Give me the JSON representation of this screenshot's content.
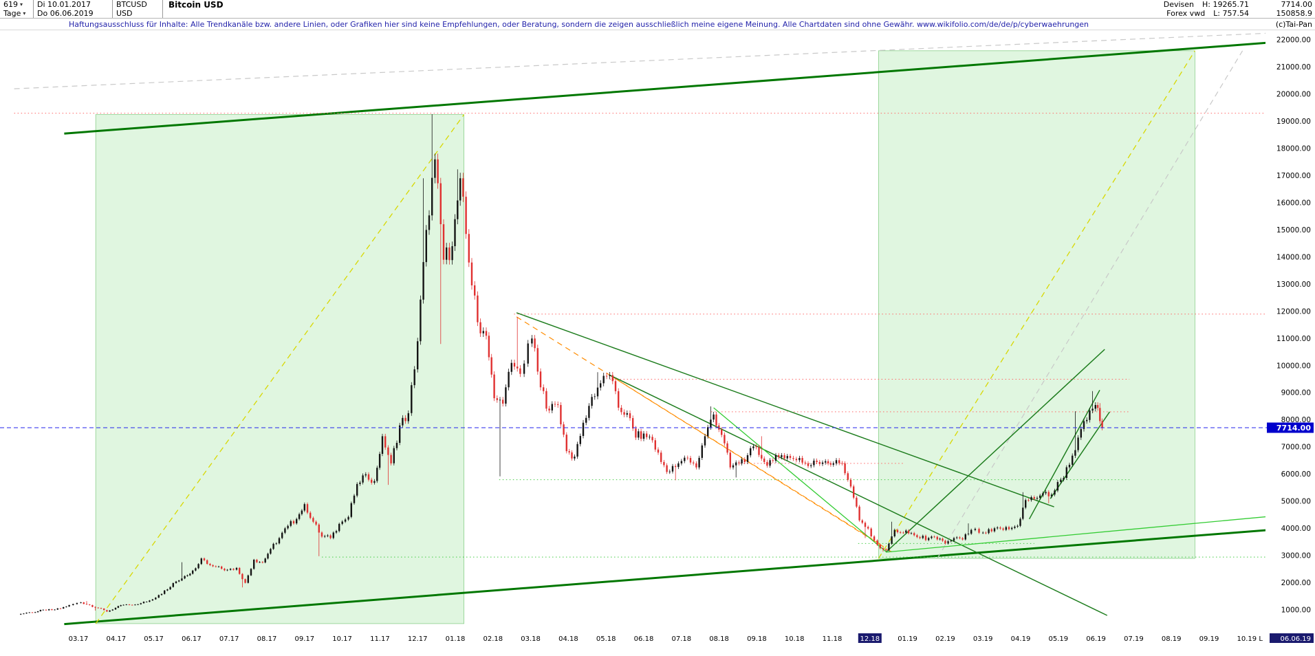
{
  "header": {
    "period_selector": "619",
    "caret": "▾",
    "date_start": "Di 10.01.2017",
    "symbol": "BTCUSD",
    "title": "Bitcoin USD",
    "timeframe_selector": "Tage",
    "date_end": "Do 06.06.2019",
    "currency": "USD",
    "market": "Devisen",
    "high": "H: 19265.71",
    "last": "7714.00",
    "source": "Forex vwd",
    "low": "L: 757.54",
    "volume": "150858.9",
    "copyright": "(c)Tai-Pan"
  },
  "disclaimer": "Haftungsausschluss für Inhalte: Alle Trendkanäle bzw. andere Linien, oder Grafiken hier sind keine Empfehlungen, oder Beratung, sondern die zeigen ausschließlich meine eigene Meinung. Alle Chartdaten sind ohne Gewähr.  www.wikifolio.com/de/de/p/cyberwaehrungen",
  "axes": {
    "price_labels": [
      "22000.00",
      "21000.00",
      "20000.00",
      "19000.00",
      "18000.00",
      "17000.00",
      "16000.00",
      "15000.00",
      "14000.00",
      "13000.00",
      "12000.00",
      "11000.00",
      "10000.00",
      "9000.00",
      "8000.00",
      "7000.00",
      "6000.00",
      "5000.00",
      "4000.00",
      "3000.00",
      "2000.00",
      "1000.00"
    ],
    "price_tag": "7714.00",
    "month_labels": [
      "03.17",
      "04.17",
      "05.17",
      "06.17",
      "07.17",
      "08.17",
      "09.17",
      "10.17",
      "11.17",
      "12.17",
      "01.18",
      "02.18",
      "03.18",
      "04.18",
      "05.18",
      "06.18",
      "07.18",
      "08.18",
      "09.18",
      "10.18",
      "11.18",
      "12.18",
      "01.19",
      "02.19",
      "03.19",
      "04.19",
      "05.19",
      "06.19",
      "07.19",
      "08.19",
      "09.19",
      "10.19"
    ],
    "highlighted_month": "12.18",
    "last_marker": "L",
    "last_date": "06.06.19"
  },
  "colors": {
    "up_candle": "#141414",
    "down_candle": "#e03030",
    "trend_channel": "#007700",
    "trend_line": "#1e7d1e",
    "bright_green": "#33cc33",
    "region_fill": "#8ee08e",
    "region_border": "#7ac87a",
    "yellow_dash": "#d8d800",
    "gray_dash": "#c8c8c8",
    "red_dotted": "#ff6666",
    "green_dotted": "#44cc44",
    "orange_dash": "#ff8c00",
    "blue_line": "#2222ee",
    "price_tag_bg": "#0000cc",
    "highlight_label_bg": "#1a1a6e"
  },
  "chart_data": {
    "type": "candlestick",
    "title": "Bitcoin USD",
    "symbol": "BTCUSD",
    "timeframe": "Tage (daily)",
    "bars": 619,
    "date_range": [
      "2017-01-10",
      "2019-06-06"
    ],
    "high": 19265.71,
    "low": 757.54,
    "last": 7714.0,
    "ylim": [
      500,
      22500
    ],
    "price_tick_step": 1000,
    "weekly": [
      [
        "2017-01-13",
        830,
        null,
        757
      ],
      [
        "2017-01-20",
        900
      ],
      [
        "2017-01-27",
        920
      ],
      [
        "2017-02-03",
        1010
      ],
      [
        "2017-02-10",
        1000
      ],
      [
        "2017-02-17",
        1055
      ],
      [
        "2017-02-24",
        1180
      ],
      [
        "2017-03-03",
        1280
      ],
      [
        "2017-03-10",
        1180,
        1330
      ],
      [
        "2017-03-17",
        1070,
        null,
        980
      ],
      [
        "2017-03-24",
        940
      ],
      [
        "2017-03-31",
        1080
      ],
      [
        "2017-04-07",
        1190
      ],
      [
        "2017-04-14",
        1180
      ],
      [
        "2017-04-21",
        1250
      ],
      [
        "2017-04-28",
        1350
      ],
      [
        "2017-05-05",
        1550
      ],
      [
        "2017-05-12",
        1760
      ],
      [
        "2017-05-19",
        2050
      ],
      [
        "2017-05-26",
        2250,
        2760
      ],
      [
        "2017-06-02",
        2450
      ],
      [
        "2017-06-09",
        2900
      ],
      [
        "2017-06-16",
        2650
      ],
      [
        "2017-06-23",
        2600
      ],
      [
        "2017-06-30",
        2480
      ],
      [
        "2017-07-07",
        2550
      ],
      [
        "2017-07-14",
        2000,
        null,
        1830
      ],
      [
        "2017-07-21",
        2850
      ],
      [
        "2017-07-28",
        2750
      ],
      [
        "2017-08-04",
        3250
      ],
      [
        "2017-08-11",
        3650
      ],
      [
        "2017-08-18",
        4100
      ],
      [
        "2017-08-25",
        4350
      ],
      [
        "2017-09-01",
        4900
      ],
      [
        "2017-09-08",
        4250
      ],
      [
        "2017-09-15",
        3700,
        null,
        2980
      ],
      [
        "2017-09-22",
        3650
      ],
      [
        "2017-09-29",
        4170
      ],
      [
        "2017-10-06",
        4430
      ],
      [
        "2017-10-13",
        5640
      ],
      [
        "2017-10-20",
        6000
      ],
      [
        "2017-10-27",
        5750
      ],
      [
        "2017-11-03",
        7400
      ],
      [
        "2017-11-10",
        6400,
        null,
        5610
      ],
      [
        "2017-11-17",
        7800
      ],
      [
        "2017-11-24",
        8250
      ],
      [
        "2017-12-01",
        10900
      ],
      [
        "2017-12-08",
        15000,
        16900
      ],
      [
        "2017-12-15",
        17600,
        19265
      ],
      [
        "2017-12-22",
        13900,
        null,
        10800
      ],
      [
        "2017-12-29",
        14400
      ],
      [
        "2018-01-05",
        16900,
        17230
      ],
      [
        "2018-01-12",
        13800
      ],
      [
        "2018-01-19",
        11600
      ],
      [
        "2018-01-26",
        11100
      ],
      [
        "2018-02-02",
        8800
      ],
      [
        "2018-02-09",
        8600,
        null,
        5920
      ],
      [
        "2018-02-16",
        10100
      ],
      [
        "2018-02-23",
        9700,
        11790
      ],
      [
        "2018-03-02",
        11000
      ],
      [
        "2018-03-09",
        9200
      ],
      [
        "2018-03-16",
        8350
      ],
      [
        "2018-03-23",
        8550
      ],
      [
        "2018-03-30",
        6850
      ],
      [
        "2018-04-06",
        6650
      ],
      [
        "2018-04-13",
        7900
      ],
      [
        "2018-04-20",
        8850
      ],
      [
        "2018-04-27",
        9350,
        9760
      ],
      [
        "2018-05-04",
        9650
      ],
      [
        "2018-05-11",
        8450
      ],
      [
        "2018-05-18",
        8250
      ],
      [
        "2018-05-25",
        7350
      ],
      [
        "2018-06-01",
        7500
      ],
      [
        "2018-06-08",
        7250
      ],
      [
        "2018-06-15",
        6450
      ],
      [
        "2018-06-22",
        6100
      ],
      [
        "2018-06-29",
        6400,
        null,
        5780
      ],
      [
        "2018-07-06",
        6600
      ],
      [
        "2018-07-13",
        6250
      ],
      [
        "2018-07-20",
        7400
      ],
      [
        "2018-07-27",
        8200,
        8500
      ],
      [
        "2018-08-03",
        7450
      ],
      [
        "2018-08-10",
        6250
      ],
      [
        "2018-08-17",
        6400,
        null,
        5880
      ],
      [
        "2018-08-24",
        6700
      ],
      [
        "2018-08-31",
        7000
      ],
      [
        "2018-09-07",
        6450,
        7400
      ],
      [
        "2018-09-14",
        6500
      ],
      [
        "2018-09-21",
        6700
      ],
      [
        "2018-09-28",
        6600
      ],
      [
        "2018-10-05",
        6600
      ],
      [
        "2018-10-12",
        6300
      ],
      [
        "2018-10-19",
        6450
      ],
      [
        "2018-10-26",
        6480
      ],
      [
        "2018-11-02",
        6400
      ],
      [
        "2018-11-09",
        6400
      ],
      [
        "2018-11-16",
        5550
      ],
      [
        "2018-11-23",
        4300
      ],
      [
        "2018-11-30",
        4000,
        null,
        3650
      ],
      [
        "2018-12-07",
        3400
      ],
      [
        "2018-12-14",
        3200,
        null,
        3150
      ],
      [
        "2018-12-21",
        3950,
        4250
      ],
      [
        "2018-12-28",
        3850
      ],
      [
        "2019-01-04",
        3830
      ],
      [
        "2019-01-11",
        3650
      ],
      [
        "2019-01-18",
        3650
      ],
      [
        "2019-01-25",
        3600
      ],
      [
        "2019-02-01",
        3450
      ],
      [
        "2019-02-08",
        3650
      ],
      [
        "2019-02-15",
        3600
      ],
      [
        "2019-02-22",
        3950,
        4190
      ],
      [
        "2019-03-01",
        3850
      ],
      [
        "2019-03-08",
        3900
      ],
      [
        "2019-03-15",
        4000
      ],
      [
        "2019-03-22",
        3980
      ],
      [
        "2019-03-29",
        4100
      ],
      [
        "2019-04-05",
        5050,
        5340
      ],
      [
        "2019-04-12",
        5100
      ],
      [
        "2019-04-19",
        5300
      ],
      [
        "2019-04-26",
        5250,
        null,
        4930
      ],
      [
        "2019-05-03",
        5800
      ],
      [
        "2019-05-10",
        6350
      ],
      [
        "2019-05-17",
        7350,
        8320,
        6600
      ],
      [
        "2019-05-24",
        8000
      ],
      [
        "2019-05-31",
        8550,
        9065
      ],
      [
        "2019-06-06",
        7714,
        8620
      ]
    ],
    "regions": [
      {
        "name": "bull-phase-2017",
        "from": "2017-03-15",
        "to": "2018-01-08",
        "top": 19250,
        "bottom": 500
      },
      {
        "name": "bull-phase-2019",
        "from": "2018-12-08",
        "to": "2019-08-20",
        "top": 21600,
        "bottom": 2900
      }
    ],
    "lines": [
      {
        "name": "upper-trend-channel",
        "from": [
          "2017-02-20",
          18550
        ],
        "to": [
          "2019-10-20",
          21900
        ],
        "color": "trend_channel",
        "width": 3,
        "style": "solid"
      },
      {
        "name": "lower-trend-channel",
        "from": [
          "2017-02-20",
          480
        ],
        "to": [
          "2019-10-20",
          3950
        ],
        "color": "trend_channel",
        "width": 3,
        "style": "solid"
      },
      {
        "name": "region1-diagonal",
        "from": [
          "2017-03-15",
          500
        ],
        "to": [
          "2018-01-08",
          19250
        ],
        "color": "yellow_dash",
        "width": 1.3,
        "style": "dash"
      },
      {
        "name": "region2-diagonal",
        "from": [
          "2018-12-08",
          2900
        ],
        "to": [
          "2019-08-20",
          21600
        ],
        "color": "yellow_dash",
        "width": 1.3,
        "style": "dash"
      },
      {
        "name": "gray-diagonal-top",
        "from": [
          "2017-01-10",
          20200
        ],
        "to": [
          "2019-10-20",
          22250
        ],
        "color": "gray_dash",
        "width": 1.2,
        "style": "dash"
      },
      {
        "name": "gray-diagonal-right",
        "from": [
          "2019-01-25",
          2900
        ],
        "to": [
          "2019-09-28",
          21600
        ],
        "color": "gray_dash",
        "width": 1.2,
        "style": "dash"
      },
      {
        "name": "resistance-19300",
        "from": [
          "2017-01-10",
          19300
        ],
        "to": [
          "2019-10-20",
          19300
        ],
        "color": "red_dotted",
        "width": 1,
        "style": "dot"
      },
      {
        "name": "resistance-11900",
        "from": [
          "2018-02-18",
          11900
        ],
        "to": [
          "2019-10-20",
          11900
        ],
        "color": "red_dotted",
        "width": 1,
        "style": "dot"
      },
      {
        "name": "resistance-9500",
        "from": [
          "2018-05-04",
          9500
        ],
        "to": [
          "2019-06-28",
          9500
        ],
        "color": "red_dotted",
        "width": 1,
        "style": "dot"
      },
      {
        "name": "resistance-8300",
        "from": [
          "2018-07-25",
          8300
        ],
        "to": [
          "2019-06-28",
          8300
        ],
        "color": "red_dotted",
        "width": 1,
        "style": "dot"
      },
      {
        "name": "resistance-6400",
        "from": [
          "2018-08-18",
          6400
        ],
        "to": [
          "2018-12-28",
          6400
        ],
        "color": "red_dotted",
        "width": 1,
        "style": "dot"
      },
      {
        "name": "support-2950",
        "from": [
          "2017-09-15",
          2950
        ],
        "to": [
          "2019-10-20",
          2950
        ],
        "color": "green_dotted",
        "width": 1,
        "style": "dot"
      },
      {
        "name": "support-5800",
        "from": [
          "2018-02-06",
          5800
        ],
        "to": [
          "2019-06-28",
          5800
        ],
        "color": "green_dotted",
        "width": 1,
        "style": "dot"
      },
      {
        "name": "support-3450",
        "from": [
          "2018-11-22",
          3450
        ],
        "to": [
          "2019-04-12",
          3450
        ],
        "color": "green_dotted",
        "width": 1,
        "style": "dot"
      },
      {
        "name": "orange-downtrend-1",
        "from": [
          "2018-02-20",
          11800
        ],
        "to": [
          "2018-12-12",
          3350
        ],
        "color": "orange_dash",
        "width": 1.2,
        "style": "dash"
      },
      {
        "name": "orange-downtrend-2",
        "from": [
          "2018-05-04",
          9650
        ],
        "to": [
          "2018-12-20",
          3100
        ],
        "color": "orange_dash",
        "width": 1.2,
        "style": "dash"
      },
      {
        "name": "descending-trend-1",
        "from": [
          "2018-02-20",
          11950
        ],
        "to": [
          "2019-04-28",
          4800
        ],
        "color": "trend_line",
        "width": 1.5,
        "style": "solid"
      },
      {
        "name": "descending-trend-2",
        "from": [
          "2018-05-04",
          9650
        ],
        "to": [
          "2019-06-10",
          800
        ],
        "color": "trend_line",
        "width": 1.5,
        "style": "solid"
      },
      {
        "name": "recovery-trend",
        "from": [
          "2018-12-14",
          3130
        ],
        "to": [
          "2019-06-08",
          10600
        ],
        "color": "trend_line",
        "width": 1.5,
        "style": "solid"
      },
      {
        "name": "ascending-channel-a",
        "from": [
          "2019-04-08",
          4350
        ],
        "to": [
          "2019-06-04",
          9100
        ],
        "color": "trend_line",
        "width": 1.5,
        "style": "solid"
      },
      {
        "name": "ascending-channel-b",
        "from": [
          "2019-04-25",
          5100
        ],
        "to": [
          "2019-06-12",
          8300
        ],
        "color": "trend_line",
        "width": 1.5,
        "style": "solid"
      },
      {
        "name": "bright-green-downtrend",
        "from": [
          "2018-07-27",
          8450
        ],
        "to": [
          "2018-12-14",
          3150
        ],
        "color": "bright_green",
        "width": 1.3,
        "style": "solid"
      },
      {
        "name": "bright-green-base",
        "from": [
          "2018-12-14",
          3130
        ],
        "to": [
          "2019-10-20",
          4450
        ],
        "color": "bright_green",
        "width": 1.3,
        "style": "solid"
      }
    ]
  }
}
